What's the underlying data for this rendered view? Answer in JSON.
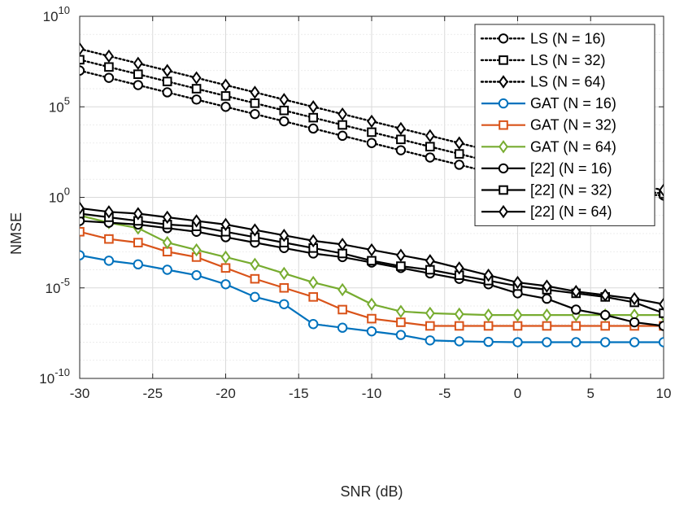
{
  "chart_data": {
    "type": "line",
    "title": "",
    "xlabel": "SNR (dB)",
    "ylabel": "NMSE",
    "yscale": "log",
    "xlim": [
      -30,
      10
    ],
    "ylim_exp": [
      -10,
      10
    ],
    "grid": true,
    "legend_position": "top-right",
    "x_ticks": [
      -30,
      -25,
      -20,
      -15,
      -10,
      -5,
      0,
      5,
      10
    ],
    "x_tick_labels": [
      "-30",
      "-25",
      "-20",
      "-15",
      "-10",
      "-5",
      "0",
      "5",
      "10"
    ],
    "y_ticks": [
      {
        "base": "10",
        "exp": "10"
      },
      {
        "base": "10",
        "exp": "5"
      },
      {
        "base": "10",
        "exp": "0"
      },
      {
        "base": "10",
        "exp": "-5"
      },
      {
        "base": "10",
        "exp": "-10"
      }
    ],
    "x": [
      -30,
      -28,
      -26,
      -24,
      -22,
      -20,
      -18,
      -16,
      -14,
      -12,
      -10,
      -8,
      -6,
      -4,
      -2,
      0,
      2,
      4,
      6,
      8,
      10
    ],
    "series": [
      {
        "name": "LS (N = 16)",
        "color": "#000000",
        "style": "dotted",
        "marker": "circle",
        "log10_values": [
          7.0,
          6.6,
          6.2,
          5.8,
          5.4,
          5.0,
          4.6,
          4.2,
          3.8,
          3.4,
          3.0,
          2.6,
          2.2,
          1.8,
          1.4,
          1.0,
          0.6,
          0.4,
          0.3,
          0.2,
          0.1
        ]
      },
      {
        "name": "LS (N = 32)",
        "color": "#000000",
        "style": "dotted",
        "marker": "square",
        "log10_values": [
          7.6,
          7.2,
          6.8,
          6.4,
          6.0,
          5.6,
          5.2,
          4.8,
          4.4,
          4.0,
          3.6,
          3.2,
          2.8,
          2.4,
          2.0,
          1.6,
          1.2,
          0.9,
          0.6,
          0.4,
          0.2
        ]
      },
      {
        "name": "LS (N = 64)",
        "color": "#000000",
        "style": "dotted",
        "marker": "diamond",
        "log10_values": [
          8.2,
          7.8,
          7.4,
          7.0,
          6.6,
          6.2,
          5.8,
          5.4,
          5.0,
          4.6,
          4.2,
          3.8,
          3.4,
          3.0,
          2.6,
          2.2,
          1.8,
          1.4,
          1.0,
          0.7,
          0.4
        ]
      },
      {
        "name": "GAT (N = 16)",
        "color": "#0072BD",
        "style": "solid",
        "marker": "circle",
        "log10_values": [
          -3.2,
          -3.5,
          -3.7,
          -4.0,
          -4.3,
          -4.8,
          -5.5,
          -5.9,
          -7.0,
          -7.2,
          -7.4,
          -7.6,
          -7.9,
          -7.95,
          -7.98,
          -8.0,
          -8.0,
          -8.0,
          -8.0,
          -8.0,
          -8.0
        ]
      },
      {
        "name": "GAT (N = 32)",
        "color": "#D95319",
        "style": "solid",
        "marker": "square",
        "log10_values": [
          -1.9,
          -2.3,
          -2.5,
          -3.0,
          -3.3,
          -3.9,
          -4.5,
          -5.0,
          -5.5,
          -6.2,
          -6.7,
          -6.9,
          -7.1,
          -7.1,
          -7.1,
          -7.1,
          -7.1,
          -7.1,
          -7.1,
          -7.1,
          -7.1
        ]
      },
      {
        "name": "GAT (N = 64)",
        "color": "#77AC30",
        "style": "solid",
        "marker": "diamond",
        "log10_values": [
          -1.0,
          -1.4,
          -1.7,
          -2.5,
          -2.9,
          -3.3,
          -3.7,
          -4.2,
          -4.7,
          -5.1,
          -5.9,
          -6.3,
          -6.4,
          -6.45,
          -6.5,
          -6.5,
          -6.5,
          -6.5,
          -6.5,
          -6.5,
          -6.5
        ]
      },
      {
        "name": "[22] (N = 16)",
        "color": "#000000",
        "style": "solid",
        "marker": "circle",
        "log10_values": [
          -1.3,
          -1.4,
          -1.5,
          -1.7,
          -1.9,
          -2.2,
          -2.5,
          -2.8,
          -3.1,
          -3.3,
          -3.6,
          -3.9,
          -4.2,
          -4.5,
          -4.8,
          -5.3,
          -5.6,
          -6.2,
          -6.5,
          -6.9,
          -7.1
        ]
      },
      {
        "name": "[22] (N = 32)",
        "color": "#000000",
        "style": "solid",
        "marker": "square",
        "log10_values": [
          -0.9,
          -1.1,
          -1.3,
          -1.5,
          -1.6,
          -1.9,
          -2.2,
          -2.5,
          -2.8,
          -3.1,
          -3.5,
          -3.8,
          -4.0,
          -4.3,
          -4.6,
          -4.9,
          -5.1,
          -5.3,
          -5.5,
          -5.8,
          -6.4
        ]
      },
      {
        "name": "[22] (N = 64)",
        "color": "#000000",
        "style": "solid",
        "marker": "diamond",
        "log10_values": [
          -0.6,
          -0.8,
          -0.9,
          -1.1,
          -1.3,
          -1.5,
          -1.8,
          -2.1,
          -2.4,
          -2.6,
          -2.9,
          -3.2,
          -3.5,
          -3.9,
          -4.3,
          -4.7,
          -4.9,
          -5.2,
          -5.4,
          -5.6,
          -5.9
        ]
      }
    ]
  }
}
